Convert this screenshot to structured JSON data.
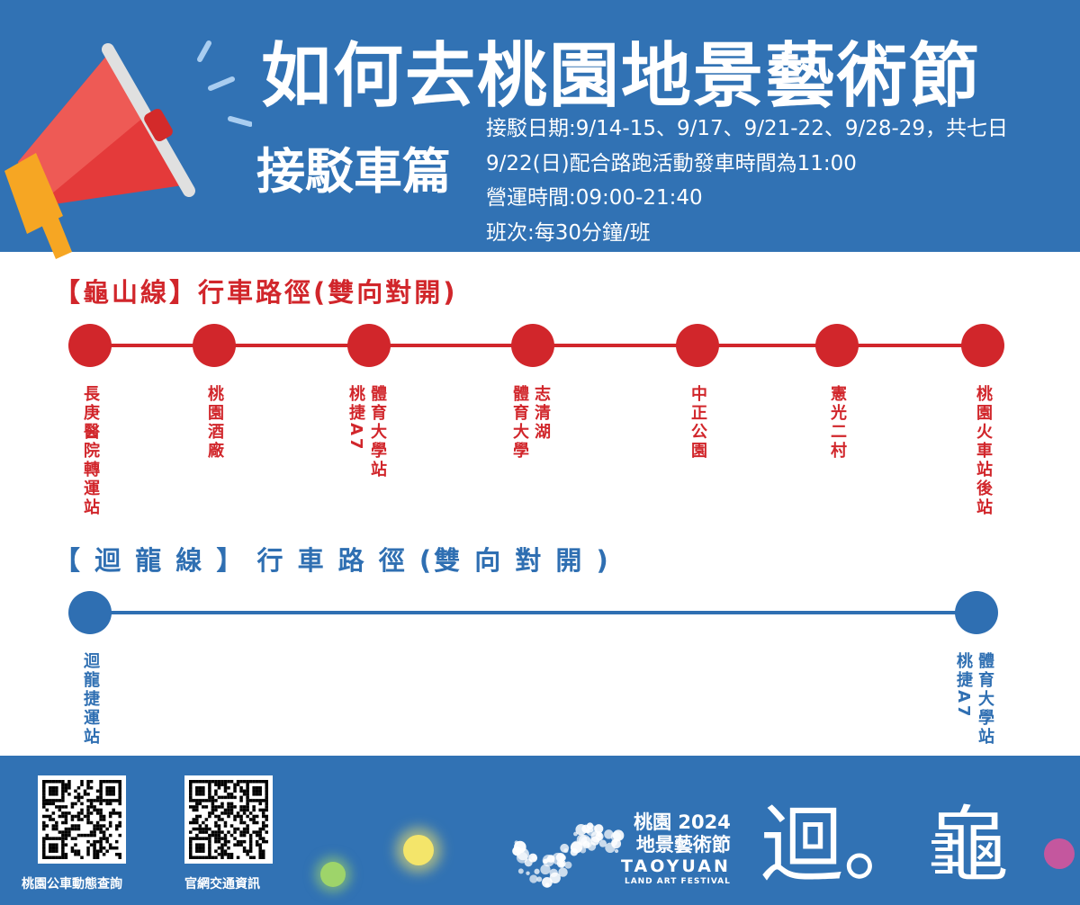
{
  "header": {
    "title": "如何去桃園地景藝術節",
    "subtitle": "接駁車篇",
    "info": [
      "接駁日期:9/14-15、9/17、9/21-22、9/28-29，共七日",
      "9/22(日)配合路跑活動發車時間為11:00",
      "營運時間:09:00-21:40",
      "班次:每30分鐘/班"
    ],
    "icon": "megaphone-icon"
  },
  "routes": [
    {
      "title": "【龜山線】行車路徑(雙向對開)",
      "color": "#d1262b",
      "stations": [
        "長庚醫院轉運站",
        "桃園酒廠",
        "體育大學站\n桃捷A7",
        "志清湖\n體育大學",
        "中正公園",
        "憲光二村",
        "桃園火車站後站"
      ]
    },
    {
      "title": "【 迴 龍 線 】 行 車 路 徑 (雙 向 對 開 )",
      "color": "#2f6fb2",
      "stations": [
        "迴龍捷運站",
        "體育大學站\n桃捷A7"
      ]
    }
  ],
  "footer": {
    "qr": [
      {
        "label": "桃園公車動態查詢"
      },
      {
        "label": "官網交通資訊"
      }
    ],
    "logo": {
      "line1": "桃園 2024",
      "line2": "地景藝術節",
      "line3": "TAOYUAN",
      "line4": "LAND ART FESTIVAL",
      "brand": "迴。龜"
    }
  }
}
